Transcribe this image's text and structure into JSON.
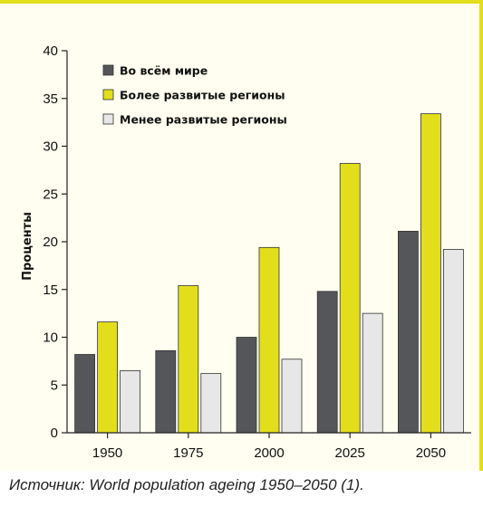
{
  "chart_data": {
    "type": "bar",
    "ylabel": "Проценты",
    "xlabel": "",
    "ylim": [
      0,
      40
    ],
    "yticks": [
      0,
      5,
      10,
      15,
      20,
      25,
      30,
      35,
      40
    ],
    "categories": [
      "1950",
      "1975",
      "2000",
      "2025",
      "2050"
    ],
    "series": [
      {
        "name": "Во всём мире",
        "color": "#54565a",
        "values": [
          8.2,
          8.6,
          10.0,
          14.8,
          21.1
        ]
      },
      {
        "name": "Более развитые регионы",
        "color": "#e3de1c",
        "values": [
          11.6,
          15.4,
          19.4,
          28.2,
          33.4
        ]
      },
      {
        "name": "Менее развитые регионы",
        "color": "#e7e7e7",
        "values": [
          6.5,
          6.2,
          7.7,
          12.5,
          19.2
        ]
      }
    ],
    "legend_position": "top-left",
    "grid": false
  },
  "source": "Источник: World population ageing 1950–2050 (1)."
}
